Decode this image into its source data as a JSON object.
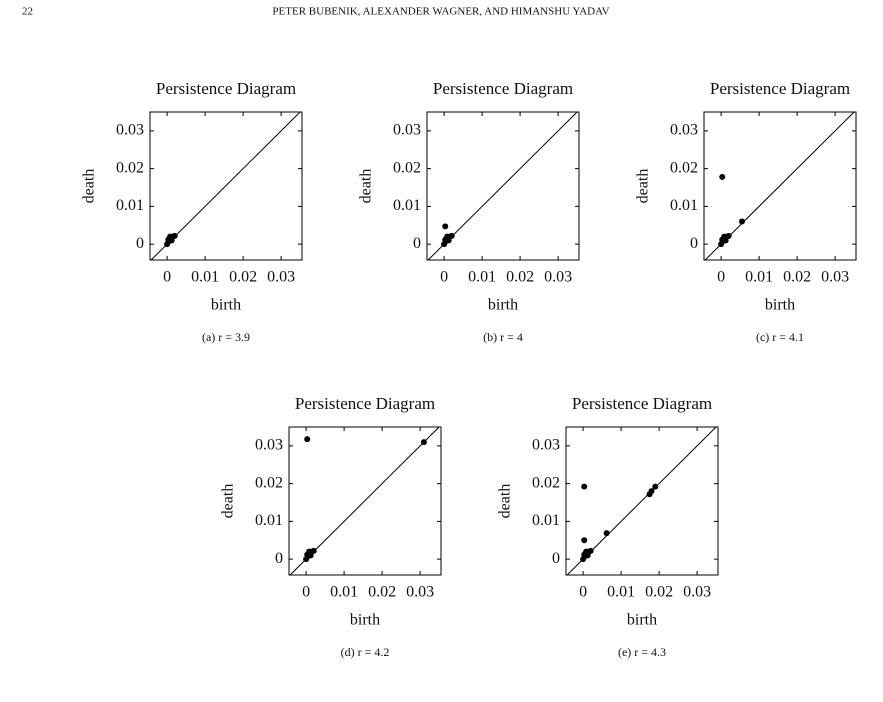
{
  "header": {
    "page_number": "22",
    "authors": "PETER BUBENIK, ALEXANDER WAGNER, AND HIMANSHU YADAV"
  },
  "chart_data": [
    {
      "type": "scatter",
      "title": "Persistence Diagram",
      "xlabel": "birth",
      "ylabel": "death",
      "caption": "(a) r = 3.9",
      "xlim": [
        -0.0045,
        0.0355
      ],
      "ylim": [
        -0.0042,
        0.035
      ],
      "xticks": [
        0,
        0.01,
        0.02,
        0.03
      ],
      "yticks": [
        0,
        0.01,
        0.02,
        0.03
      ],
      "color": "#000000",
      "x": [
        0,
        0.0005,
        0.001,
        0.0008,
        0.0015,
        0.002,
        0.0003,
        0.0012
      ],
      "y": [
        0,
        0.0008,
        0.0015,
        0.002,
        0.002,
        0.0022,
        0.0012,
        0.001
      ]
    },
    {
      "type": "scatter",
      "title": "Persistence Diagram",
      "xlabel": "birth",
      "ylabel": "death",
      "caption": "(b) r = 4",
      "xlim": [
        -0.0045,
        0.0355
      ],
      "ylim": [
        -0.0042,
        0.035
      ],
      "xticks": [
        0,
        0.01,
        0.02,
        0.03
      ],
      "yticks": [
        0,
        0.01,
        0.02,
        0.03
      ],
      "color": "#000000",
      "x": [
        0,
        0.0005,
        0.001,
        0.0008,
        0.0015,
        0.002,
        0.0003,
        0.0012,
        0.0003
      ],
      "y": [
        0,
        0.0008,
        0.0015,
        0.002,
        0.002,
        0.0022,
        0.0012,
        0.001,
        0.0047
      ]
    },
    {
      "type": "scatter",
      "title": "Persistence Diagram",
      "xlabel": "birth",
      "ylabel": "death",
      "caption": "(c) r = 4.1",
      "xlim": [
        -0.0045,
        0.0355
      ],
      "ylim": [
        -0.0042,
        0.035
      ],
      "xticks": [
        0,
        0.01,
        0.02,
        0.03
      ],
      "yticks": [
        0,
        0.01,
        0.02,
        0.03
      ],
      "color": "#000000",
      "x": [
        0,
        0.0005,
        0.001,
        0.0008,
        0.0015,
        0.002,
        0.0003,
        0.0012,
        0.0003,
        0.0055
      ],
      "y": [
        0,
        0.0008,
        0.0015,
        0.002,
        0.002,
        0.0022,
        0.0012,
        0.001,
        0.0178,
        0.006
      ]
    },
    {
      "type": "scatter",
      "title": "Persistence Diagram",
      "xlabel": "birth",
      "ylabel": "death",
      "caption": "(d) r = 4.2",
      "xlim": [
        -0.0045,
        0.0355
      ],
      "ylim": [
        -0.0042,
        0.035
      ],
      "xticks": [
        0,
        0.01,
        0.02,
        0.03
      ],
      "yticks": [
        0,
        0.01,
        0.02,
        0.03
      ],
      "color": "#000000",
      "x": [
        0,
        0.0005,
        0.001,
        0.0008,
        0.0015,
        0.002,
        0.0003,
        0.0012,
        0.0003,
        0.031
      ],
      "y": [
        0,
        0.0008,
        0.0015,
        0.002,
        0.002,
        0.0022,
        0.0012,
        0.001,
        0.0318,
        0.031
      ]
    },
    {
      "type": "scatter",
      "title": "Persistence Diagram",
      "xlabel": "birth",
      "ylabel": "death",
      "caption": "(e) r = 4.3",
      "xlim": [
        -0.0045,
        0.0355
      ],
      "ylim": [
        -0.0042,
        0.035
      ],
      "xticks": [
        0,
        0.01,
        0.02,
        0.03
      ],
      "yticks": [
        0,
        0.01,
        0.02,
        0.03
      ],
      "color": "#000000",
      "x": [
        0,
        0.0005,
        0.001,
        0.0008,
        0.0015,
        0.002,
        0.0003,
        0.0012,
        0.0003,
        0.0003,
        0.0062,
        0.0175,
        0.018,
        0.019
      ],
      "y": [
        0,
        0.0008,
        0.0015,
        0.002,
        0.002,
        0.0022,
        0.0012,
        0.001,
        0.0192,
        0.005,
        0.0069,
        0.0172,
        0.018,
        0.0192
      ]
    }
  ]
}
